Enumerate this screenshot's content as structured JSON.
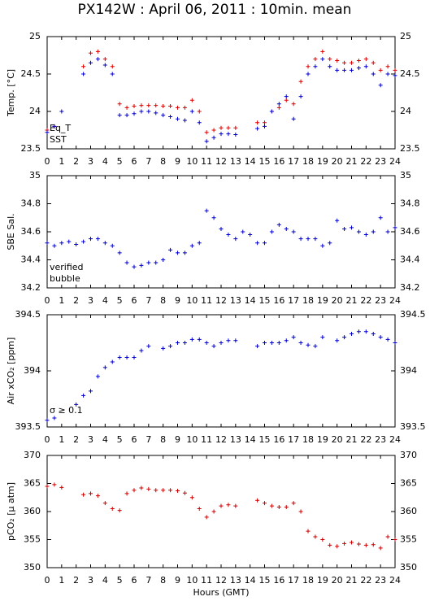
{
  "title": "PX142W : April 06, 2011 : 10min. mean",
  "xlabel": "Hours (GMT)",
  "chart_data": [
    {
      "type": "scatter",
      "ylabel": "Temp. [°C]",
      "x": [
        0,
        0.5,
        1,
        1.5,
        2,
        2.5,
        3,
        3.5,
        4,
        4.5,
        5,
        5.5,
        6,
        6.5,
        7,
        7.5,
        8,
        8.5,
        9,
        9.5,
        10,
        10.5,
        11,
        11.5,
        12,
        12.5,
        13,
        13.5,
        14,
        14.5,
        15,
        15.5,
        16,
        16.5,
        17,
        17.5,
        18,
        18.5,
        19,
        19.5,
        20,
        20.5,
        21,
        21.5,
        22,
        22.5,
        23,
        23.5,
        24
      ],
      "series": [
        {
          "name": "Eq_T",
          "color": "#dd0000",
          "values": [
            23.75,
            23.8,
            null,
            null,
            null,
            24.6,
            24.78,
            24.8,
            24.7,
            24.6,
            24.1,
            24.05,
            24.07,
            24.08,
            24.08,
            24.08,
            24.07,
            24.07,
            24.05,
            24.05,
            24.15,
            24.0,
            23.72,
            23.75,
            23.78,
            23.78,
            23.78,
            null,
            null,
            23.85,
            23.85,
            24.0,
            24.05,
            24.15,
            24.1,
            24.4,
            24.6,
            24.7,
            24.8,
            24.7,
            24.68,
            24.65,
            24.65,
            24.68,
            24.7,
            24.65,
            24.55,
            24.6,
            24.55
          ]
        },
        {
          "name": "SST",
          "color": "#0000cc",
          "values": [
            23.72,
            23.8,
            24.0,
            null,
            null,
            24.5,
            24.65,
            24.7,
            24.62,
            24.5,
            23.95,
            23.95,
            23.97,
            24.0,
            24.0,
            23.98,
            23.95,
            23.93,
            23.9,
            23.88,
            24.0,
            23.85,
            23.6,
            23.65,
            23.7,
            23.7,
            23.69,
            null,
            null,
            23.77,
            23.8,
            24.0,
            24.1,
            24.2,
            23.9,
            24.2,
            24.5,
            24.6,
            24.7,
            24.6,
            24.55,
            24.55,
            24.55,
            24.58,
            24.6,
            24.5,
            24.35,
            24.5,
            24.48
          ]
        }
      ],
      "xlim": [
        0,
        24
      ],
      "xticks": [
        0,
        1,
        2,
        3,
        4,
        5,
        6,
        7,
        8,
        9,
        10,
        11,
        12,
        13,
        14,
        15,
        16,
        17,
        18,
        19,
        20,
        21,
        22,
        23,
        24
      ],
      "ylim": [
        23.5,
        25
      ],
      "yticks": [
        23.5,
        24,
        24.5,
        25
      ]
    },
    {
      "type": "scatter",
      "ylabel": "SBE Sal.",
      "x": [
        0,
        0.5,
        1,
        1.5,
        2,
        2.5,
        3,
        3.5,
        4,
        4.5,
        5,
        5.5,
        6,
        6.5,
        7,
        7.5,
        8,
        8.5,
        9,
        9.5,
        10,
        10.5,
        11,
        11.5,
        12,
        12.5,
        13,
        13.5,
        14,
        14.5,
        15,
        15.5,
        16,
        16.5,
        17,
        17.5,
        18,
        18.5,
        19,
        19.5,
        20,
        20.5,
        21,
        21.5,
        22,
        22.5,
        23,
        23.5,
        24
      ],
      "series": [
        {
          "name": "verified",
          "color": "#0000cc",
          "values": [
            34.52,
            34.5,
            34.52,
            34.53,
            34.51,
            34.53,
            34.55,
            34.55,
            34.52,
            34.5,
            34.45,
            34.38,
            34.35,
            34.36,
            34.38,
            34.38,
            34.4,
            34.47,
            34.45,
            34.45,
            34.5,
            34.52,
            34.75,
            34.7,
            34.62,
            34.58,
            34.55,
            34.6,
            34.58,
            34.52,
            34.52,
            34.6,
            34.65,
            34.62,
            34.6,
            34.55,
            34.55,
            34.55,
            34.5,
            34.52,
            34.68,
            34.62,
            34.63,
            34.6,
            34.58,
            34.6,
            34.7,
            34.6,
            34.63
          ]
        }
      ],
      "annotations": [
        {
          "text": "bubble",
          "color": "#cc00cc"
        }
      ],
      "xlim": [
        0,
        24
      ],
      "xticks": [
        0,
        1,
        2,
        3,
        4,
        5,
        6,
        7,
        8,
        9,
        10,
        11,
        12,
        13,
        14,
        15,
        16,
        17,
        18,
        19,
        20,
        21,
        22,
        23,
        24
      ],
      "ylim": [
        34.2,
        35
      ],
      "yticks": [
        34.2,
        34.4,
        34.6,
        34.8,
        35
      ]
    },
    {
      "type": "scatter",
      "ylabel": "Air xCO₂ [ppm]",
      "x": [
        0,
        0.5,
        1,
        1.5,
        2,
        2.5,
        3,
        3.5,
        4,
        4.5,
        5,
        5.5,
        6,
        6.5,
        7,
        7.5,
        8,
        8.5,
        9,
        9.5,
        10,
        10.5,
        11,
        11.5,
        12,
        12.5,
        13,
        13.5,
        14,
        14.5,
        15,
        15.5,
        16,
        16.5,
        17,
        17.5,
        18,
        18.5,
        19,
        19.5,
        20,
        20.5,
        21,
        21.5,
        22,
        22.5,
        23,
        23.5,
        24
      ],
      "series": [
        {
          "color": "#0000cc",
          "values": [
            393.56,
            393.58,
            null,
            null,
            393.7,
            393.78,
            393.82,
            393.95,
            394.03,
            394.08,
            394.12,
            394.12,
            394.12,
            394.18,
            394.22,
            null,
            394.2,
            394.22,
            394.25,
            394.25,
            394.28,
            394.28,
            394.25,
            394.22,
            394.25,
            394.27,
            394.27,
            null,
            null,
            394.22,
            394.25,
            394.25,
            394.25,
            394.27,
            394.3,
            394.25,
            394.23,
            394.22,
            394.3,
            null,
            394.27,
            394.3,
            394.33,
            394.35,
            394.35,
            394.33,
            394.3,
            394.28,
            394.25
          ]
        }
      ],
      "annotations": [
        {
          "text": "σ ≥ 0.1",
          "color": "#cc00cc"
        }
      ],
      "xlim": [
        0,
        24
      ],
      "xticks": [
        0,
        1,
        2,
        3,
        4,
        5,
        6,
        7,
        8,
        9,
        10,
        11,
        12,
        13,
        14,
        15,
        16,
        17,
        18,
        19,
        20,
        21,
        22,
        23,
        24
      ],
      "ylim": [
        393.5,
        394.5
      ],
      "yticks": [
        393.5,
        394,
        394.5
      ]
    },
    {
      "type": "scatter",
      "ylabel": "pCO₂ [μ atm]",
      "x": [
        0,
        0.5,
        1,
        1.5,
        2,
        2.5,
        3,
        3.5,
        4,
        4.5,
        5,
        5.5,
        6,
        6.5,
        7,
        7.5,
        8,
        8.5,
        9,
        9.5,
        10,
        10.5,
        11,
        11.5,
        12,
        12.5,
        13,
        13.5,
        14,
        14.5,
        15,
        15.5,
        16,
        16.5,
        17,
        17.5,
        18,
        18.5,
        19,
        19.5,
        20,
        20.5,
        21,
        21.5,
        22,
        22.5,
        23,
        23.5,
        24
      ],
      "series": [
        {
          "color": "#cc0000",
          "values": [
            364.5,
            364.8,
            364.3,
            null,
            null,
            363,
            363.2,
            362.8,
            361.5,
            360.5,
            360.2,
            363.2,
            363.8,
            364.2,
            364,
            363.8,
            363.8,
            363.8,
            363.7,
            363.3,
            362.5,
            360.5,
            359,
            360,
            361,
            361.2,
            361,
            null,
            null,
            362,
            361.5,
            361,
            360.8,
            360.8,
            361.5,
            360,
            356.5,
            355.5,
            355,
            354,
            353.8,
            354.3,
            354.5,
            354.2,
            354,
            354.1,
            353.5,
            355.5,
            355
          ]
        }
      ],
      "xlim": [
        0,
        24
      ],
      "xticks": [
        0,
        1,
        2,
        3,
        4,
        5,
        6,
        7,
        8,
        9,
        10,
        11,
        12,
        13,
        14,
        15,
        16,
        17,
        18,
        19,
        20,
        21,
        22,
        23,
        24
      ],
      "ylim": [
        350,
        370
      ],
      "yticks": [
        350,
        355,
        360,
        365,
        370
      ]
    }
  ]
}
